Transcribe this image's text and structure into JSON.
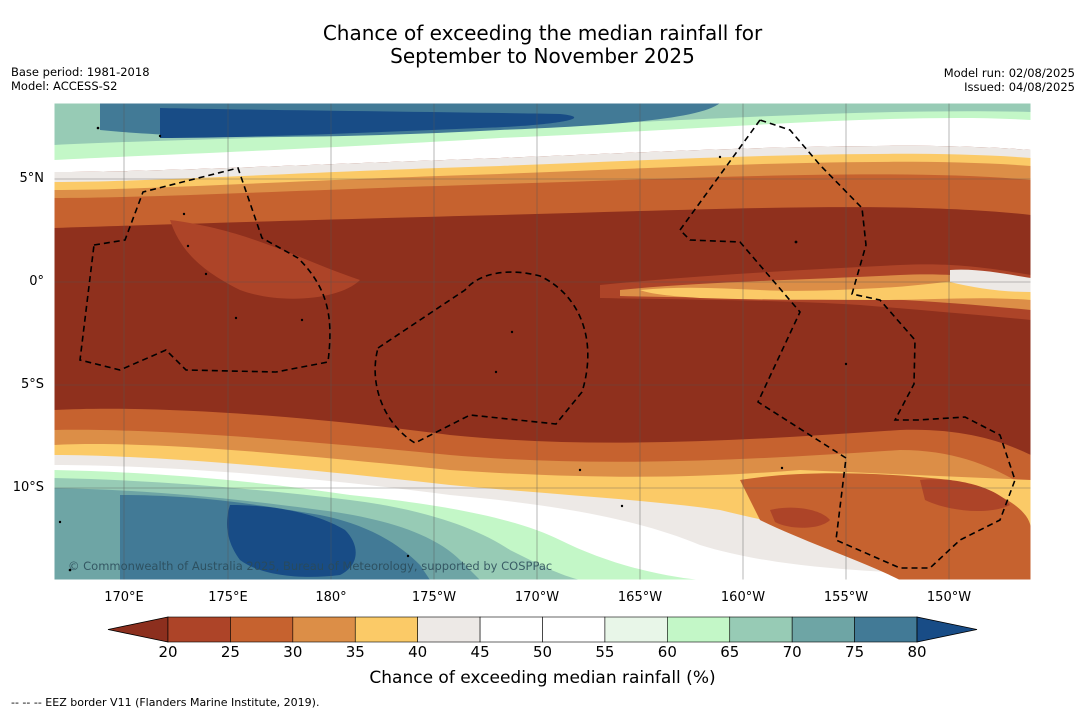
{
  "title_line1": "Chance of exceeding the median rainfall for",
  "title_line2": "September to November 2025",
  "meta_left": {
    "base_period": "Base period: 1981-2018",
    "model": "Model: ACCESS-S2"
  },
  "meta_right": {
    "model_run": "Model run: 02/08/2025",
    "issued": "Issued: 04/08/2025"
  },
  "lon_labels": [
    "170°E",
    "175°E",
    "180°",
    "175°W",
    "170°W",
    "165°W",
    "160°W",
    "155°W",
    "150°W"
  ],
  "lat_labels": [
    "5°N",
    "0°",
    "5°S",
    "10°S"
  ],
  "colorbar": {
    "ticks": [
      "20",
      "25",
      "30",
      "35",
      "40",
      "45",
      "50",
      "55",
      "60",
      "65",
      "70",
      "75",
      "80"
    ],
    "colors": [
      "#8c2f1e",
      "#ad4428",
      "#c6622f",
      "#dc8e47",
      "#fbca67",
      "#ede9e6",
      "#ffffff",
      "#ffffff",
      "#e8f6e8",
      "#c3f7c7",
      "#97cbb5",
      "#6ea5a5",
      "#427a96",
      "#184c86"
    ],
    "title": "Chance of exceeding median rainfall (%)"
  },
  "copyright": "© Commonwealth of Australia 2025, Bureau of Meteorology, supported by COSPPac",
  "legend_note": "--  --  -- EEZ border V11 (Flanders Marine Institute, 2019)."
}
